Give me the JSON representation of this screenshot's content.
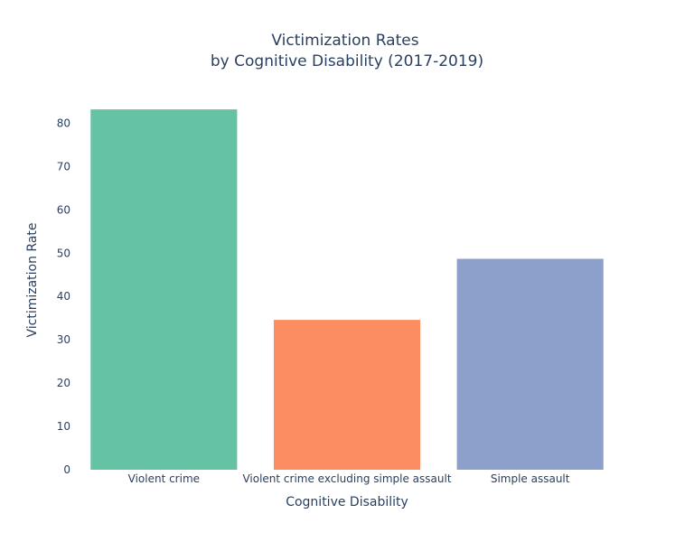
{
  "chart_data": {
    "type": "bar",
    "title": "Victimization Rates",
    "subtitle": "by Cognitive Disability (2017-2019)",
    "xlabel": "Cognitive Disability",
    "ylabel": "Victimization Rate",
    "categories": [
      "Violent crime",
      "Violent crime excluding simple assault",
      "Simple assault"
    ],
    "values": [
      83.2,
      34.6,
      48.7
    ],
    "colors": [
      "#66c2a5",
      "#fc8d62",
      "#8da0cb"
    ],
    "ylim": [
      0,
      87.6
    ],
    "yticks": [
      0,
      10,
      20,
      30,
      40,
      50,
      60,
      70,
      80
    ],
    "grid": false,
    "legend": "none"
  }
}
